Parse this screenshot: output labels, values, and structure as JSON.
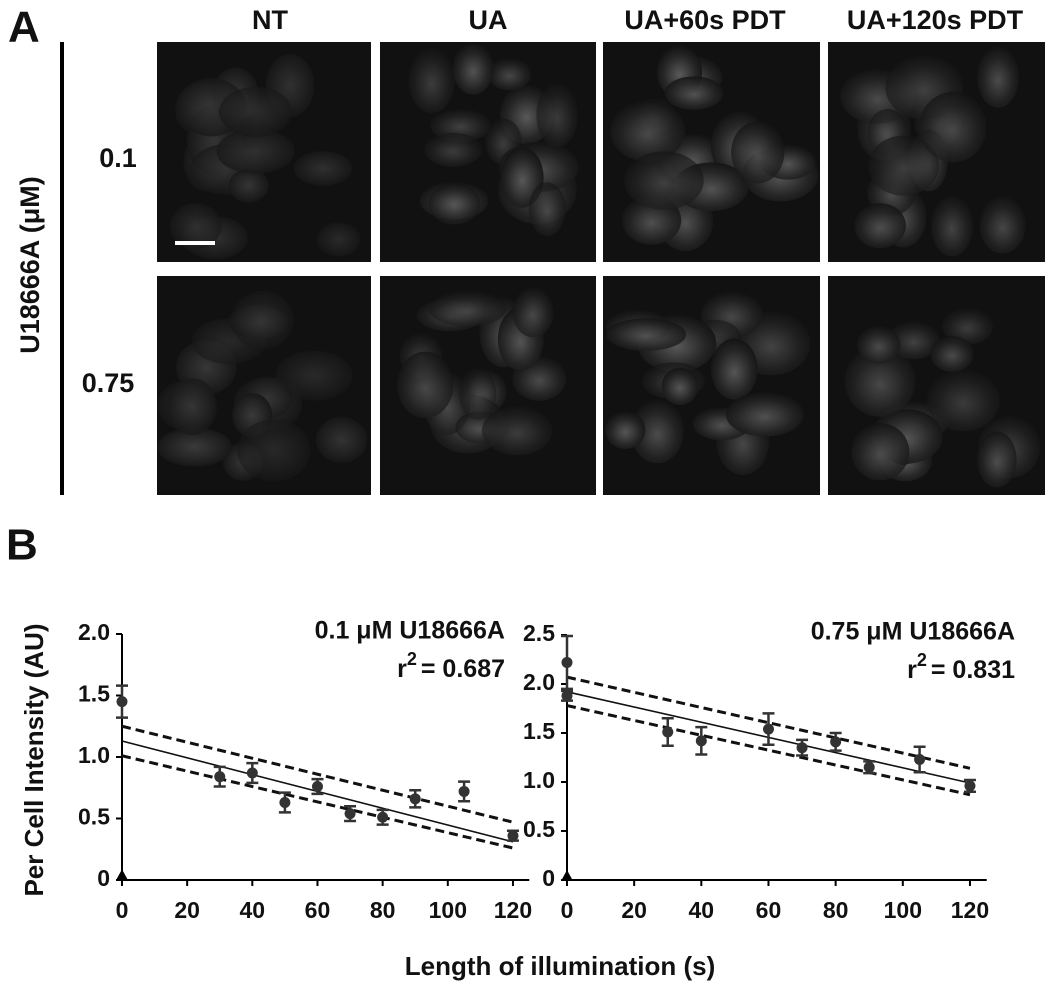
{
  "panel_labels": [
    "A",
    "B"
  ],
  "panel_a": {
    "y_label": "U18666A (μM)",
    "columns": [
      "NT",
      "UA",
      "UA+60s PDT",
      "UA+120s PDT"
    ],
    "rows": [
      "0.1",
      "0.75"
    ]
  },
  "chart_data": [
    {
      "type": "scatter",
      "title": "0.1 μM U18666A",
      "annotation": [
        "r",
        "2",
        "= 0.687"
      ],
      "ylabel": "Per Cell Intensity (AU)",
      "xlabel": "Length of illumination (s)",
      "xlim": [
        0,
        125
      ],
      "ylim": [
        0,
        2
      ],
      "xticks": [
        0,
        20,
        40,
        60,
        80,
        100,
        120
      ],
      "yticks": [
        0,
        0.5,
        {
          "value": 1,
          "label": "1.0"
        },
        1.5,
        {
          "value": 2,
          "label": "2.0"
        }
      ],
      "color": "#333333",
      "series": [
        {
          "marker": "circle",
          "x": [
            0,
            30,
            40,
            50,
            60,
            70,
            80,
            90,
            105,
            120
          ],
          "values": [
            1.45,
            0.84,
            0.87,
            0.63,
            0.76,
            0.54,
            0.51,
            0.66,
            0.72,
            0.36
          ],
          "errors": [
            0.13,
            0.08,
            0.08,
            0.08,
            0.06,
            0.06,
            0.06,
            0.07,
            0.08,
            0.04
          ]
        },
        {
          "marker": "triangle",
          "x": [
            0
          ],
          "values": [
            0.03
          ]
        }
      ],
      "fit_lines": [
        {
          "dashed": false,
          "x": [
            0,
            120
          ],
          "values": [
            1.13,
            0.31
          ]
        },
        {
          "dashed": true,
          "x": [
            0,
            120
          ],
          "values": [
            1.25,
            0.47
          ]
        },
        {
          "dashed": true,
          "x": [
            0,
            120
          ],
          "values": [
            1.01,
            0.26
          ]
        }
      ]
    },
    {
      "type": "scatter",
      "title": "0.75 μM U18666A",
      "annotation": [
        "r",
        "2",
        "= 0.831"
      ],
      "xlim": [
        0,
        125
      ],
      "ylim": [
        0,
        2.5
      ],
      "xticks": [
        0,
        20,
        40,
        60,
        80,
        100,
        120
      ],
      "yticks": [
        0,
        0.5,
        {
          "value": 1,
          "label": "1.0"
        },
        1.5,
        {
          "value": 2,
          "label": "2.0"
        },
        2.5
      ],
      "color": "#333333",
      "series": [
        {
          "marker": "circle",
          "x": [
            0,
            0,
            30,
            40,
            60,
            70,
            80,
            90,
            105,
            120
          ],
          "values": [
            2.22,
            1.88,
            1.51,
            1.42,
            1.54,
            1.35,
            1.41,
            1.15,
            1.23,
            0.96
          ],
          "errors": [
            0.27,
            0.05,
            0.14,
            0.14,
            0.16,
            0.08,
            0.09,
            0.06,
            0.13,
            0.06
          ]
        },
        {
          "marker": "triangle",
          "x": [
            0
          ],
          "values": [
            0.03
          ]
        }
      ],
      "fit_lines": [
        {
          "dashed": false,
          "x": [
            0,
            120
          ],
          "values": [
            1.92,
            0.99
          ]
        },
        {
          "dashed": true,
          "x": [
            0,
            120
          ],
          "values": [
            2.07,
            1.14
          ]
        },
        {
          "dashed": true,
          "x": [
            0,
            120
          ],
          "values": [
            1.78,
            0.87
          ]
        }
      ]
    }
  ]
}
